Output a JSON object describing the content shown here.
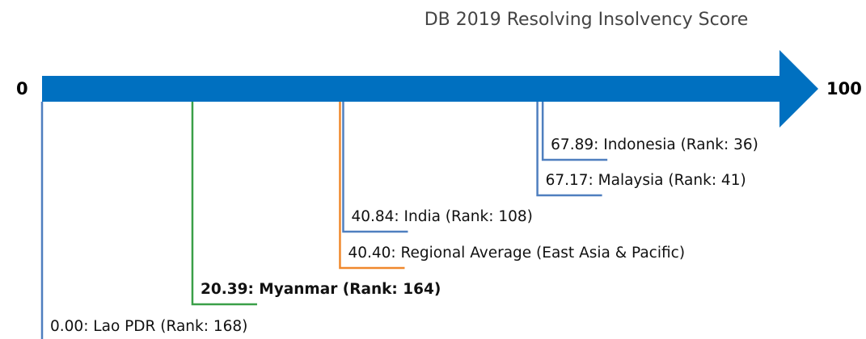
{
  "chart_data": {
    "type": "number-line",
    "title": "DB 2019 Resolving Insolvency Score",
    "xlim": [
      0,
      100
    ],
    "xticks": [
      0,
      100
    ],
    "axis_color": "#0070c0",
    "values": [
      67.89,
      67.17,
      40.84,
      40.4,
      20.39,
      0.0
    ],
    "value_labels": [
      "67.89: Indonesia (Rank: 36)",
      "67.17: Malaysia (Rank: 41)",
      "40.84: India (Rank: 108)",
      "40.40: Regional Average (East Asia & Pacific)",
      "20.39: Myanmar (Rank: 164)",
      "0.00: Lao PDR (Rank: 168)"
    ],
    "colors": [
      "#4f7fbf",
      "#4f7fbf",
      "#4f7fbf",
      "#f0882c",
      "#3a9f48",
      "#4f7fbf"
    ],
    "bold": [
      false,
      false,
      false,
      false,
      true,
      false
    ]
  }
}
